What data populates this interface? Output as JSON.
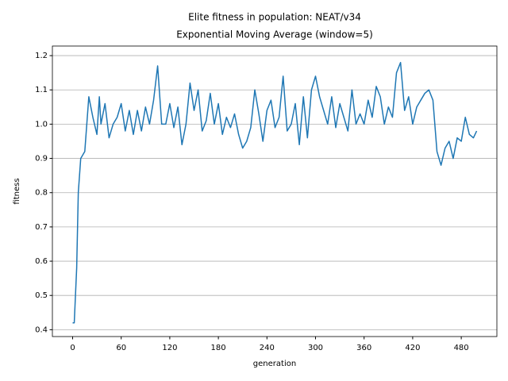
{
  "chart_data": {
    "type": "line",
    "title": "Elite fitness in population: NEAT/v34",
    "subtitle": "Exponential Moving Average (window=5)",
    "x_label": "generation",
    "y_label": "fitness",
    "x": [
      0,
      2,
      5,
      7,
      10,
      15,
      20,
      25,
      30,
      33,
      35,
      40,
      45,
      50,
      55,
      60,
      65,
      70,
      75,
      80,
      85,
      90,
      95,
      100,
      105,
      110,
      115,
      120,
      125,
      130,
      135,
      140,
      145,
      150,
      155,
      160,
      165,
      170,
      175,
      180,
      185,
      190,
      195,
      200,
      205,
      210,
      215,
      220,
      225,
      230,
      235,
      240,
      245,
      250,
      255,
      260,
      265,
      270,
      275,
      280,
      285,
      290,
      295,
      300,
      305,
      310,
      315,
      320,
      325,
      330,
      335,
      340,
      345,
      350,
      355,
      360,
      365,
      370,
      375,
      380,
      385,
      390,
      395,
      400,
      405,
      410,
      415,
      420,
      425,
      430,
      435,
      440,
      445,
      450,
      455,
      460,
      465,
      470,
      475,
      480,
      485,
      490,
      495,
      499
    ],
    "series": [
      {
        "name": "fitness",
        "color": "#1f77b4",
        "values": [
          0.42,
          0.42,
          0.58,
          0.8,
          0.9,
          0.92,
          1.08,
          1.02,
          0.97,
          1.08,
          1.0,
          1.06,
          0.96,
          1.0,
          1.02,
          1.06,
          0.98,
          1.04,
          0.97,
          1.04,
          0.98,
          1.05,
          1.0,
          1.07,
          1.17,
          1.0,
          1.0,
          1.06,
          0.99,
          1.05,
          0.94,
          1.0,
          1.12,
          1.04,
          1.1,
          0.98,
          1.01,
          1.09,
          1.0,
          1.06,
          0.97,
          1.02,
          0.99,
          1.03,
          0.97,
          0.93,
          0.95,
          0.99,
          1.1,
          1.03,
          0.95,
          1.04,
          1.07,
          0.99,
          1.02,
          1.14,
          0.98,
          1.0,
          1.06,
          0.94,
          1.08,
          0.96,
          1.1,
          1.14,
          1.08,
          1.04,
          1.0,
          1.08,
          0.99,
          1.06,
          1.02,
          0.98,
          1.1,
          1.0,
          1.03,
          1.0,
          1.07,
          1.02,
          1.11,
          1.08,
          1.0,
          1.05,
          1.02,
          1.15,
          1.18,
          1.04,
          1.08,
          1.0,
          1.05,
          1.07,
          1.09,
          1.1,
          1.07,
          0.92,
          0.88,
          0.93,
          0.95,
          0.9,
          0.96,
          0.95,
          1.02,
          0.97,
          0.96,
          0.98
        ]
      }
    ],
    "xlim": [
      -25,
      524
    ],
    "ylim": [
      0.38,
      1.228
    ],
    "xticks": [
      0,
      60,
      120,
      180,
      240,
      300,
      360,
      420,
      480
    ],
    "yticks": [
      {
        "value": 0.4,
        "label": "0.4"
      },
      {
        "value": 0.5,
        "label": "0.5"
      },
      {
        "value": 0.6,
        "label": "0.6"
      },
      {
        "value": 0.7,
        "label": "0.7"
      },
      {
        "value": 0.8,
        "label": "0.8"
      },
      {
        "value": 0.9,
        "label": "0.9"
      },
      {
        "value": 1.0,
        "label": "1.0"
      },
      {
        "value": 1.1,
        "label": "1.1"
      },
      {
        "value": 1.2,
        "label": "1.2"
      }
    ],
    "grid": "y"
  }
}
